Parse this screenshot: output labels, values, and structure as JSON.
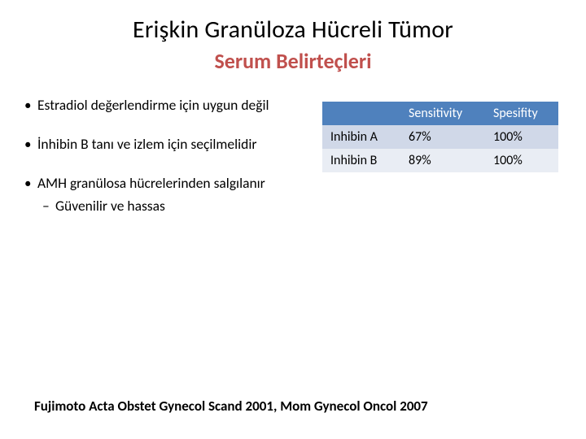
{
  "title": "Erişkin Granüloza Hücreli Tümor",
  "subtitle": "Serum Belirteçleri",
  "bullets": [
    {
      "text": "Estradiol değerlendirme için uygun değil",
      "sub": []
    },
    {
      "text": "İnhibin B tanı ve izlem için seçilmelidir",
      "sub": []
    },
    {
      "text": "AMH granülosa hücrelerinden salgılanır",
      "sub": [
        "Güvenilir ve hassas"
      ]
    }
  ],
  "table": {
    "columns": [
      "",
      "Sensitivity",
      "Spesifity"
    ],
    "rows": [
      [
        "Inhibin A",
        "67%",
        "100%"
      ],
      [
        "Inhibin B",
        "89%",
        "100%"
      ]
    ],
    "header_bg": "#4f81bd",
    "header_text_color": "#ffffff",
    "row_stripe_colors": [
      "#d0d8e8",
      "#e9edf4"
    ],
    "border_color": "#ffffff",
    "col_widths": [
      "96px",
      "104px",
      "90px"
    ],
    "font_size": 16
  },
  "reference": "Fujimoto Acta Obstet Gynecol Scand 2001, Mom Gynecol Oncol 2007",
  "colors": {
    "title_color": "#000000",
    "subtitle_color": "#c0504d",
    "body_text_color": "#000000",
    "background": "#ffffff"
  },
  "typography": {
    "title_fontsize": 30,
    "subtitle_fontsize": 26,
    "body_fontsize": 17.5,
    "reference_fontsize": 17,
    "reference_bold": true,
    "font_family": "Calibri"
  }
}
